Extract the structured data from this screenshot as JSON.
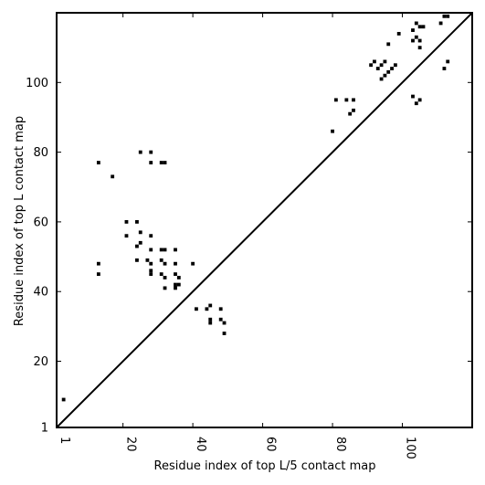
{
  "chart_data": {
    "type": "heatmap",
    "xlabel": "Residue index of top L/5 contact map",
    "ylabel": "Residue index of top L contact map",
    "xlim": [
      1,
      120
    ],
    "ylim": [
      1,
      120
    ],
    "xticks": [
      1,
      20,
      40,
      60,
      80,
      100
    ],
    "yticks": [
      1,
      20,
      40,
      60,
      80,
      100
    ],
    "diagonal": true,
    "grid": false,
    "colors": {
      "contact": "#000000",
      "background": "#ffffff",
      "diagonal": "#000000"
    },
    "upper_contacts": [
      [
        80,
        86
      ],
      [
        81,
        95
      ],
      [
        84,
        95
      ],
      [
        86,
        95
      ],
      [
        85,
        91
      ],
      [
        86,
        92
      ],
      [
        91,
        105
      ],
      [
        92,
        106
      ],
      [
        93,
        104
      ],
      [
        94,
        105
      ],
      [
        95,
        106
      ],
      [
        96,
        103
      ],
      [
        97,
        104
      ],
      [
        98,
        105
      ],
      [
        94,
        101
      ],
      [
        95,
        102
      ],
      [
        96,
        111
      ],
      [
        99,
        114
      ],
      [
        103,
        112
      ],
      [
        104,
        113
      ],
      [
        103,
        115
      ],
      [
        105,
        112
      ],
      [
        104,
        117
      ],
      [
        105,
        116
      ],
      [
        106,
        116
      ],
      [
        105,
        110
      ],
      [
        103,
        96
      ],
      [
        104,
        94
      ],
      [
        105,
        95
      ],
      [
        111,
        117
      ],
      [
        112,
        119
      ],
      [
        113,
        119
      ],
      [
        112,
        104
      ],
      [
        113,
        106
      ]
    ],
    "lower_contacts": [
      [
        3,
        9
      ],
      [
        13,
        77
      ],
      [
        17,
        73
      ],
      [
        13,
        48
      ],
      [
        13,
        45
      ],
      [
        21,
        60
      ],
      [
        21,
        56
      ],
      [
        24,
        60
      ],
      [
        25,
        57
      ],
      [
        24,
        53
      ],
      [
        25,
        54
      ],
      [
        25,
        80
      ],
      [
        28,
        80
      ],
      [
        28,
        77
      ],
      [
        24,
        49
      ],
      [
        27,
        49
      ],
      [
        28,
        48
      ],
      [
        28,
        52
      ],
      [
        28,
        56
      ],
      [
        28,
        45
      ],
      [
        28,
        46
      ],
      [
        31,
        52
      ],
      [
        32,
        52
      ],
      [
        31,
        49
      ],
      [
        32,
        48
      ],
      [
        31,
        45
      ],
      [
        32,
        44
      ],
      [
        32,
        41
      ],
      [
        31,
        77
      ],
      [
        32,
        77
      ],
      [
        35,
        52
      ],
      [
        35,
        48
      ],
      [
        35,
        45
      ],
      [
        36,
        44
      ],
      [
        35,
        42
      ],
      [
        36,
        42
      ],
      [
        35,
        41
      ],
      [
        40,
        48
      ],
      [
        41,
        35
      ],
      [
        44,
        35
      ],
      [
        45,
        36
      ],
      [
        45,
        32
      ],
      [
        45,
        31
      ],
      [
        48,
        35
      ],
      [
        48,
        32
      ],
      [
        49,
        31
      ],
      [
        49,
        28
      ]
    ]
  }
}
